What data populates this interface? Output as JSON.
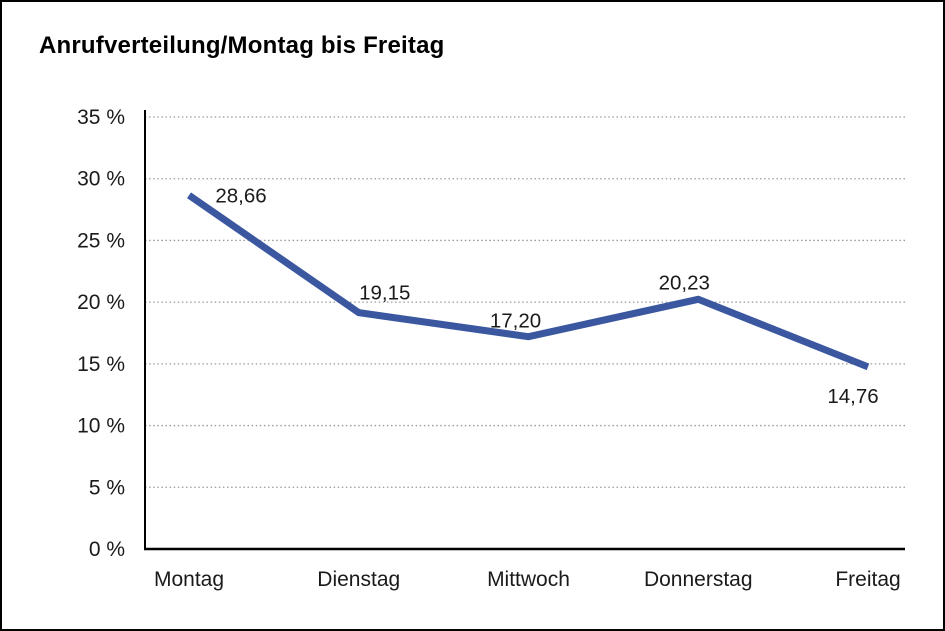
{
  "chart_data": {
    "type": "line",
    "title": "Anrufverteilung/Montag bis Freitag",
    "categories": [
      "Montag",
      "Dienstag",
      "Mittwoch",
      "Donnerstag",
      "Freitag"
    ],
    "values": [
      28.66,
      19.15,
      17.2,
      20.23,
      14.76
    ],
    "data_labels": [
      "28,66",
      "19,15",
      "17,20",
      "20,23",
      "14,76"
    ],
    "series_name": "Anrufverteilung",
    "xlabel": "",
    "ylabel": "",
    "ylim": [
      0,
      35
    ],
    "y_tick_step": 5,
    "y_ticks": [
      {
        "value": 35,
        "label": "35 %"
      },
      {
        "value": 30,
        "label": "30 %"
      },
      {
        "value": 25,
        "label": "25 %"
      },
      {
        "value": 20,
        "label": "20 %"
      },
      {
        "value": 15,
        "label": "15 %"
      },
      {
        "value": 10,
        "label": "10 %"
      },
      {
        "value": 5,
        "label": "5 %"
      },
      {
        "value": 0,
        "label": "0 %"
      }
    ],
    "grid": "horizontal-dotted",
    "legend": "none",
    "colors": {
      "line": "#3A57A0",
      "axis": "#000000",
      "gridline": "#999999",
      "text": "#1a1a1a"
    }
  }
}
